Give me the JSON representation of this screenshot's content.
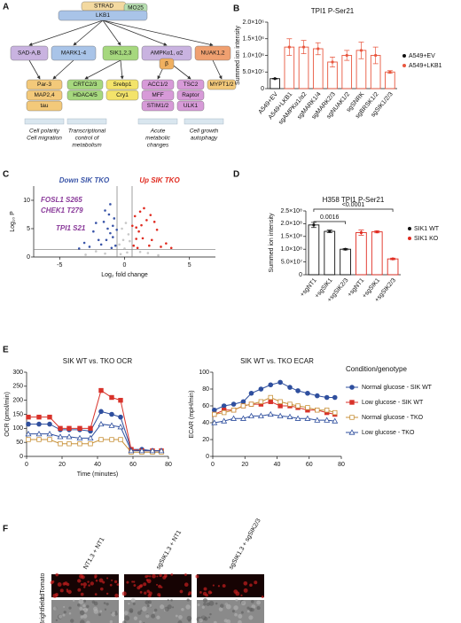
{
  "panels": [
    "A",
    "B",
    "C",
    "D",
    "E",
    "F"
  ],
  "diagram": {
    "nodes": [
      "STRAD",
      "MO25",
      "LKB1",
      "SAD-A,B",
      "MARK1-4",
      "SIK1,2,3",
      "AMPKα1, α2",
      "β",
      "NUAK1,2",
      "Par-3",
      "MAP2,4",
      "tau",
      "CRTC2/3",
      "HDAC4/5",
      "Srebp1",
      "Cry1",
      "ACC1/2",
      "MFF",
      "STIM1/2",
      "TSC2",
      "Raptor",
      "ULK1",
      "MYPT1/2"
    ],
    "captions": [
      [
        "Cell polarity",
        "Cell migration"
      ],
      [
        "Transcriptional",
        "control of",
        "metabolism"
      ],
      [
        "Acute",
        "metabolic",
        "changes"
      ],
      [
        "Cell growth",
        "autophagy"
      ]
    ]
  },
  "chart_data": [
    {
      "type": "bar",
      "title": "TPI1 P-Ser21",
      "ylabel": "Summed ion intensity",
      "categories": [
        "A549+EV",
        "A549+LKB1",
        "sgAMPKα1/α2",
        "sgMARK1/4",
        "sgMARK2/3",
        "sgNUAK1/2",
        "sgSNRK",
        "sgBRSK1/2",
        "sgSIK1/2/3"
      ],
      "series": [
        {
          "name": "A549+EV",
          "color": "#111111",
          "values": [
            300000,
            null,
            null,
            null,
            null,
            null,
            null,
            null,
            null
          ],
          "errors": [
            10000,
            null,
            null,
            null,
            null,
            null,
            null,
            null,
            null
          ]
        },
        {
          "name": "A549+LKB1",
          "color": "#e8573f",
          "values": [
            null,
            1250000,
            1250000,
            1200000,
            800000,
            1000000,
            1150000,
            1000000,
            500000
          ],
          "errors": [
            null,
            250000,
            200000,
            180000,
            150000,
            150000,
            250000,
            250000,
            40000
          ]
        }
      ],
      "ylim": [
        0,
        2000000
      ],
      "yticks": [
        0,
        {
          "value": 500000,
          "label": "5.0×10⁵"
        },
        {
          "value": 1000000,
          "label": "1.0×10⁶"
        },
        {
          "value": 1500000,
          "label": "1.5×10⁶"
        },
        {
          "value": 2000000,
          "label": "2.0×10⁶"
        }
      ]
    },
    {
      "type": "scatter",
      "xlabel": "Log₂ fold change",
      "ylabel": "Log₁₀ P",
      "series": [
        {
          "name": "Down SIK TKO",
          "color": "#3a55a8",
          "x": [
            -0.7,
            -0.9,
            -1.1,
            -1.3,
            -1.6,
            -0.8,
            -2.0,
            -2.4,
            -3.1,
            -1.2,
            -1.5,
            -0.9,
            -1.8,
            -2.7,
            -1.0,
            -0.6,
            -2.2,
            -1.4,
            -3.5,
            -1.1
          ],
          "y": [
            2,
            3.5,
            4.2,
            5,
            6.2,
            6.8,
            3,
            4.5,
            2.5,
            7.5,
            8.2,
            5.5,
            2.2,
            1.8,
            1.6,
            4.8,
            6,
            3,
            1.5,
            9.3
          ]
        },
        {
          "name": "Up SIK TKO",
          "color": "#e02b20",
          "x": [
            0.7,
            0.9,
            1.1,
            1.3,
            1.7,
            0.8,
            2.1,
            2.5,
            3.2,
            1.2,
            1.5,
            0.9,
            1.9,
            2.8,
            1.0,
            0.6,
            2.3,
            1.4,
            3.6,
            2.0
          ],
          "y": [
            2,
            3.2,
            4.5,
            5.6,
            6.5,
            7.2,
            3,
            4.8,
            2.4,
            8,
            8.6,
            5.2,
            2,
            1.8,
            1.6,
            5.5,
            6.2,
            3.3,
            1.6,
            7.4
          ]
        },
        {
          "color": "#c8c8c8",
          "x": [
            -0.3,
            0.2,
            0,
            -0.1,
            0.3,
            -0.4,
            0.1,
            -1.5,
            1.8,
            -3,
            2.6,
            0.4,
            -0.2,
            -2.2,
            1.2
          ],
          "y": [
            0.5,
            0.8,
            1.5,
            3,
            4,
            2.2,
            6,
            0.6,
            0.7,
            0.4,
            0.3,
            2.8,
            5,
            1,
            0.9
          ]
        }
      ],
      "annotations": [
        "FOSL1 S265",
        "CHEK1 T279",
        "TPI1 S21"
      ],
      "threshold_x": [
        -0.58,
        0.58
      ],
      "threshold_y": 1.3,
      "xlim": [
        -7,
        7
      ],
      "xticks": [
        -5,
        0,
        5
      ],
      "ylim": [
        0,
        12.5
      ],
      "yticks": [
        0,
        5,
        10
      ]
    },
    {
      "type": "bar",
      "title": "H358 TPI1 P-Ser21",
      "ylabel": "Summed ion intensity",
      "categories": [
        "+sgNT1",
        "+sgSIK1",
        "+sgSIK2/3",
        "+sgNT1",
        "+sgSIK1",
        "+sgSIK2/3"
      ],
      "series": [
        {
          "name": "SIK1 WT",
          "color": "#111111",
          "values": [
            195000000,
            170000000,
            100000000,
            null,
            null,
            null
          ],
          "errors": [
            10000000,
            5000000,
            3000000,
            null,
            null,
            null
          ]
        },
        {
          "name": "SIK1 KO",
          "color": "#e02b20",
          "values": [
            null,
            null,
            null,
            165000000,
            168000000,
            62000000
          ],
          "errors": [
            null,
            null,
            null,
            10000000,
            4000000,
            3000000
          ]
        }
      ],
      "brackets": [
        {
          "label": "<0.0001",
          "from": 0,
          "to": 5
        },
        {
          "label": "0.0016",
          "from": 0,
          "to": 2
        }
      ],
      "ylim": [
        0,
        250000000
      ],
      "yticks": [
        0,
        {
          "value": 50000000,
          "label": "5.0×10⁷"
        },
        {
          "value": 100000000,
          "label": "1.0×10⁸"
        },
        {
          "value": 150000000,
          "label": "1.5×10⁸"
        },
        {
          "value": 200000000,
          "label": "2.0×10⁸"
        },
        {
          "value": 250000000,
          "label": "2.5×10⁸"
        }
      ]
    },
    {
      "type": "line",
      "title": "SIK WT vs. TKO OCR",
      "xlabel": "Time (minutes)",
      "ylabel": "OCR (pmol/min)",
      "legend_title": "Condition/genotype",
      "x": [
        1,
        7,
        13,
        19,
        24,
        30,
        36,
        42,
        48,
        53,
        59,
        65,
        71,
        76
      ],
      "series": [
        {
          "name": "Normal glucose - SIK WT",
          "color": "#2f4f9e",
          "marker": "circle",
          "fill": true,
          "values": [
            115,
            115,
            115,
            95,
            95,
            95,
            90,
            160,
            150,
            140,
            25,
            25,
            20,
            20
          ]
        },
        {
          "name": "Low glucose - SIK WT",
          "color": "#d8322a",
          "marker": "square",
          "fill": true,
          "values": [
            140,
            140,
            140,
            100,
            100,
            100,
            100,
            235,
            210,
            200,
            25,
            20,
            20,
            20
          ]
        },
        {
          "name": "Normal glucose - TKO",
          "color": "#c8923a",
          "marker": "square",
          "fill": false,
          "values": [
            60,
            60,
            60,
            45,
            45,
            45,
            45,
            60,
            60,
            60,
            15,
            15,
            15,
            15
          ]
        },
        {
          "name": "Low glucose - TKO",
          "color": "#2f4f9e",
          "marker": "triangle",
          "fill": false,
          "values": [
            80,
            80,
            80,
            70,
            70,
            65,
            65,
            115,
            110,
            105,
            20,
            20,
            20,
            20
          ]
        }
      ],
      "xlim": [
        0,
        80
      ],
      "xticks": [
        0,
        20,
        40,
        60,
        80
      ],
      "ylim": [
        0,
        300
      ],
      "yticks": [
        0,
        50,
        100,
        150,
        200,
        250,
        300
      ]
    },
    {
      "type": "line",
      "title": "SIK WT vs. TKO ECAR",
      "ylabel": "ECAR (mpH/min)",
      "x": [
        1,
        7,
        13,
        19,
        24,
        30,
        36,
        42,
        48,
        53,
        59,
        65,
        71,
        76
      ],
      "series": [
        {
          "color": "#2f4f9e",
          "marker": "circle",
          "fill": true,
          "values": [
            55,
            60,
            62,
            65,
            75,
            80,
            85,
            88,
            82,
            78,
            75,
            72,
            70,
            70
          ]
        },
        {
          "color": "#d8322a",
          "marker": "square",
          "fill": true,
          "values": [
            50,
            55,
            55,
            60,
            62,
            62,
            65,
            60,
            60,
            58,
            55,
            55,
            52,
            50
          ]
        },
        {
          "color": "#c8923a",
          "marker": "square",
          "fill": false,
          "values": [
            50,
            52,
            55,
            60,
            62,
            65,
            70,
            65,
            62,
            60,
            58,
            55,
            55,
            52
          ]
        },
        {
          "color": "#2f4f9e",
          "marker": "triangle",
          "fill": false,
          "values": [
            40,
            42,
            45,
            45,
            48,
            48,
            50,
            48,
            47,
            45,
            45,
            43,
            43,
            42
          ]
        }
      ],
      "xlim": [
        0,
        80
      ],
      "xticks": [
        0,
        20,
        40,
        60,
        80
      ],
      "ylim": [
        0,
        100
      ],
      "yticks": [
        0,
        20,
        40,
        60,
        80,
        100
      ]
    }
  ],
  "images": {
    "columns": [
      "NT1.3 + NT1",
      "sgSIK1.3 + NT1",
      "sgSIK1.3 + sgSIK2/3"
    ],
    "rows": [
      "tdTomato",
      "Brightfield"
    ]
  }
}
